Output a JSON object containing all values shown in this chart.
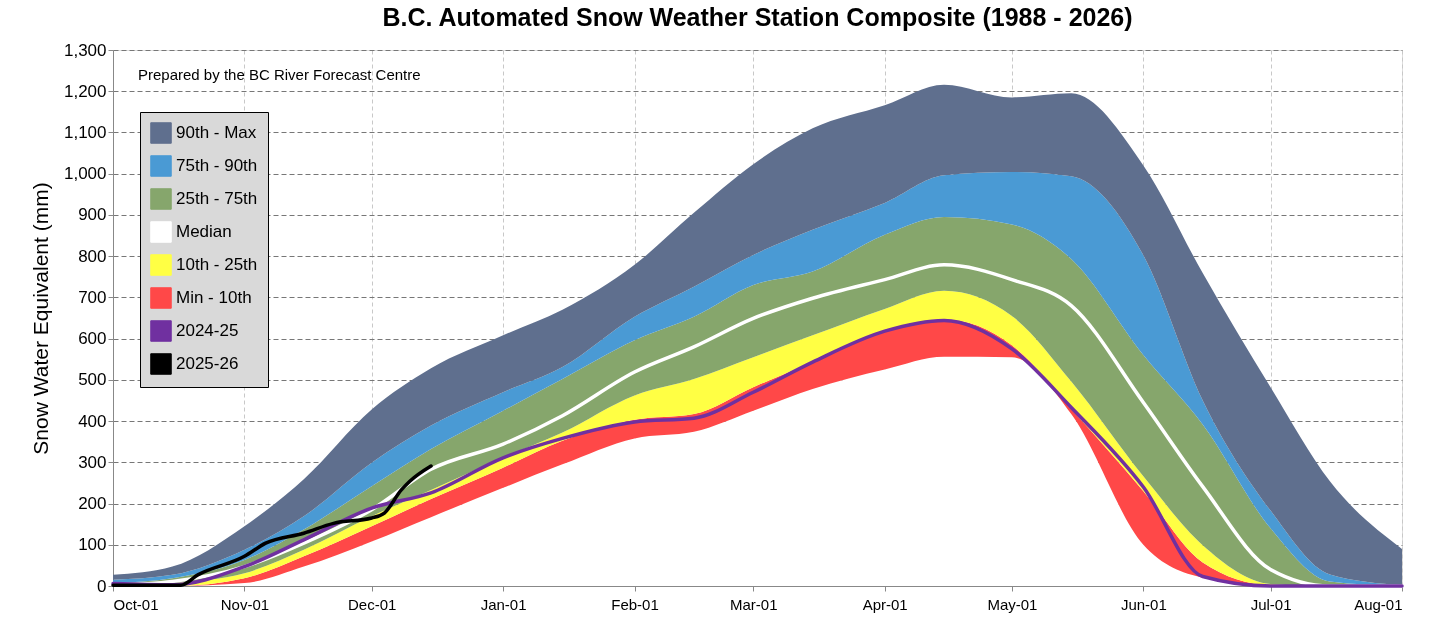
{
  "chart_data": {
    "type": "area",
    "stacked": true,
    "title": "B.C. Automated Snow Weather Station Composite (1988 - 2026)",
    "ylabel": "Snow Water Equivalent (mm)",
    "annotations": [
      "Prepared by the BC River Forecast Centre"
    ],
    "x": [
      "2025-10-01",
      "2025-10-15",
      "2025-11-01",
      "2025-11-15",
      "2025-12-01",
      "2025-12-15",
      "2026-01-01",
      "2026-01-15",
      "2026-02-01",
      "2026-02-15",
      "2026-03-01",
      "2026-03-15",
      "2026-04-01",
      "2026-04-15",
      "2026-05-01",
      "2026-05-15",
      "2026-06-01",
      "2026-06-15",
      "2026-07-01",
      "2026-07-15",
      "2026-08-01"
    ],
    "xlim": [
      "2025-10-01",
      "2026-08-01"
    ],
    "xticks": [
      {
        "value": "2025-10-01",
        "label": "Oct-01"
      },
      {
        "value": "2025-11-01",
        "label": "Nov-01"
      },
      {
        "value": "2025-12-01",
        "label": "Dec-01"
      },
      {
        "value": "2026-01-01",
        "label": "Jan-01"
      },
      {
        "value": "2026-02-01",
        "label": "Feb-01"
      },
      {
        "value": "2026-03-01",
        "label": "Mar-01"
      },
      {
        "value": "2026-04-01",
        "label": "Apr-01"
      },
      {
        "value": "2026-05-01",
        "label": "May-01"
      },
      {
        "value": "2026-06-01",
        "label": "Jun-01"
      },
      {
        "value": "2026-07-01",
        "label": "Jul-01"
      },
      {
        "value": "2026-08-01",
        "label": "Aug-01"
      }
    ],
    "ylim": [
      0,
      1300
    ],
    "yticks": [
      0,
      100,
      200,
      300,
      400,
      500,
      600,
      700,
      800,
      900,
      {
        "value": 1000,
        "label": "1,000"
      },
      {
        "value": 1100,
        "label": "1,100"
      },
      {
        "value": 1200,
        "label": "1,200"
      },
      {
        "value": 1300,
        "label": "1,300"
      }
    ],
    "grid": true,
    "legend": "top left",
    "series": [
      {
        "color": "#ffffff",
        "values": [
          0,
          0,
          7,
          47,
          108,
          167,
          238,
          295,
          358,
          374,
          425,
          478,
          525,
          556,
          555,
          417,
          100,
          20,
          0,
          0,
          0
        ]
      },
      {
        "name": "Min - 10th",
        "color": "#ff4848",
        "values": [
          0,
          0,
          12,
          25,
          37,
          44,
          49,
          57,
          45,
          43,
          57,
          65,
          92,
          91,
          29,
          12,
          130,
          37,
          2,
          0,
          0
        ]
      },
      {
        "name": "10th - 25th",
        "color": "#ffff44",
        "values": [
          0,
          7,
          12,
          16,
          24,
          22,
          24,
          20,
          59,
          85,
          73,
          65,
          55,
          69,
          71,
          67,
          36,
          42,
          3,
          0,
          0
        ]
      },
      {
        "name": "Median",
        "type": "line",
        "color": "#ffffff",
        "values": [
          2,
          11,
          47,
          104,
          185,
          283,
          344,
          413,
          519,
          580,
          649,
          698,
          743,
          779,
          743,
          680,
          445,
          241,
          40,
          0,
          0
        ]
      },
      {
        "name": "25th - 75th",
        "color": "#86a66c",
        "values": [
          7,
          12,
          32,
          49,
          73,
          99,
          114,
          130,
          134,
          151,
          175,
          155,
          180,
          179,
          222,
          297,
          294,
          293,
          135,
          11,
          0
        ]
      },
      {
        "name": "75th - 90th",
        "color": "#4a9ad4",
        "values": [
          8,
          8,
          25,
          32,
          57,
          57,
          45,
          29,
          57,
          73,
          73,
          101,
          77,
          101,
          127,
          201,
          242,
          58,
          43,
          17,
          2
        ]
      },
      {
        "name": "90th - Max",
        "color": "#5f6f8e",
        "values": [
          12,
          20,
          57,
          90,
          129,
          139,
          138,
          139,
          126,
          179,
          220,
          246,
          237,
          220,
          181,
          201,
          218,
          309,
          299,
          226,
          88
        ]
      },
      {
        "name": "2024-25",
        "type": "line",
        "color": "#7030a0",
        "values": [
          6,
          3,
          47,
          112,
          189,
          226,
          311,
          358,
          398,
          407,
          470,
          543,
          618,
          644,
          575,
          433,
          240,
          23,
          0,
          0,
          0
        ]
      },
      {
        "name": "2025-26",
        "type": "line",
        "color": "#000000",
        "x": [
          "2025-10-01",
          "2025-10-17",
          "2025-10-21",
          "2025-11-01",
          "2025-11-06",
          "2025-11-15",
          "2025-11-22",
          "2025-12-01",
          "2025-12-04",
          "2025-12-08",
          "2025-12-10",
          "2025-12-15"
        ],
        "values": [
          2,
          2,
          27,
          72,
          104,
          128,
          152,
          165,
          177,
          233,
          254,
          291
        ]
      }
    ]
  }
}
